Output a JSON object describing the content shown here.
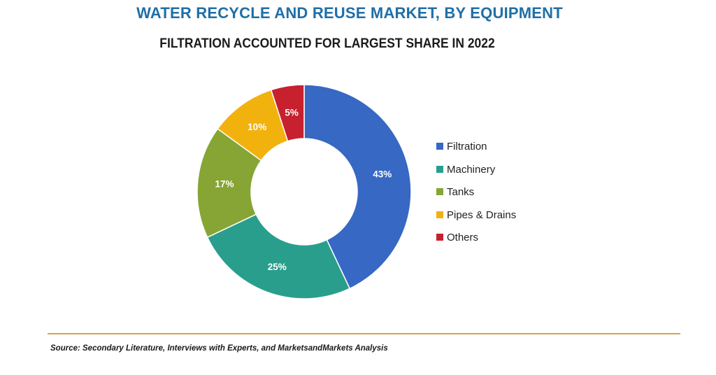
{
  "colors": {
    "title": "#1f6fa8",
    "subtitle": "#1b1b1b",
    "divider": "#d3a44c"
  },
  "chart_data": {
    "type": "pie",
    "variant": "donut",
    "title": "WATER RECYCLE AND REUSE MARKET, BY EQUIPMENT",
    "subtitle": "FILTRATION ACCOUNTED FOR LARGEST SHARE IN 2022",
    "legend_position": "right",
    "slices": [
      {
        "name": "Filtration",
        "value": 43,
        "label": "43%",
        "color": "#3668c4"
      },
      {
        "name": "Machinery",
        "value": 25,
        "label": "25%",
        "color": "#2a9e8c"
      },
      {
        "name": "Tanks",
        "value": 17,
        "label": "17%",
        "color": "#86a534"
      },
      {
        "name": "Pipes & Drains",
        "value": 10,
        "label": "10%",
        "color": "#f2b20e"
      },
      {
        "name": "Others",
        "value": 5,
        "label": "5%",
        "color": "#c7202e"
      }
    ]
  },
  "source": "Source: Secondary Literature, Interviews with Experts, and MarketsandMarkets Analysis"
}
